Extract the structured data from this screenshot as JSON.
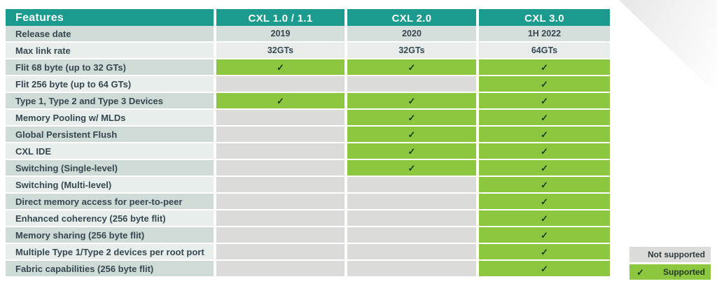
{
  "table": {
    "header": {
      "features_label": "Features",
      "columns": [
        "CXL 1.0 / 1.1",
        "CXL 2.0",
        "CXL 3.0"
      ]
    },
    "rows": [
      {
        "feature": "Release date",
        "values": [
          "2019",
          "2020",
          "1H 2022"
        ]
      },
      {
        "feature": "Max link rate",
        "values": [
          "32GTs",
          "32GTs",
          "64GTs"
        ]
      },
      {
        "feature": "Flit 68 byte (up to 32 GTs)",
        "values": [
          true,
          true,
          true
        ]
      },
      {
        "feature": "Flit 256 byte (up to 64 GTs)",
        "values": [
          false,
          false,
          true
        ]
      },
      {
        "feature": "Type 1, Type 2 and Type 3 Devices",
        "values": [
          true,
          true,
          true
        ]
      },
      {
        "feature": "Memory Pooling w/ MLDs",
        "values": [
          false,
          true,
          true
        ]
      },
      {
        "feature": "Global Persistent Flush",
        "values": [
          false,
          true,
          true
        ]
      },
      {
        "feature": "CXL IDE",
        "values": [
          false,
          true,
          true
        ]
      },
      {
        "feature": "Switching (Single-level)",
        "values": [
          false,
          true,
          true
        ]
      },
      {
        "feature": "Switching (Multi-level)",
        "values": [
          false,
          false,
          true
        ]
      },
      {
        "feature": "Direct memory access for peer-to-peer",
        "values": [
          false,
          false,
          true
        ]
      },
      {
        "feature": "Enhanced coherency (256 byte flit)",
        "values": [
          false,
          false,
          true
        ]
      },
      {
        "feature": "Memory sharing (256 byte flit)",
        "values": [
          false,
          false,
          true
        ]
      },
      {
        "feature": "Multiple Type 1/Type 2 devices per root port",
        "values": [
          false,
          false,
          true
        ]
      },
      {
        "feature": "Fabric capabilities (256 byte flit)",
        "values": [
          false,
          false,
          true
        ]
      }
    ]
  },
  "legend": {
    "not_supported_label": "Not supported",
    "supported_label": "Supported",
    "check_glyph": "✓"
  },
  "colors": {
    "header_teal": "#1b9a8e",
    "supported_green": "#8dc63f",
    "not_supported_gray": "#dbdbd9",
    "row_label_dark": "#cedbd6",
    "row_label_light": "#e8eeec",
    "check_dark": "#1d3a24",
    "text_dark": "#37474f",
    "header_text": "#ffffff"
  }
}
